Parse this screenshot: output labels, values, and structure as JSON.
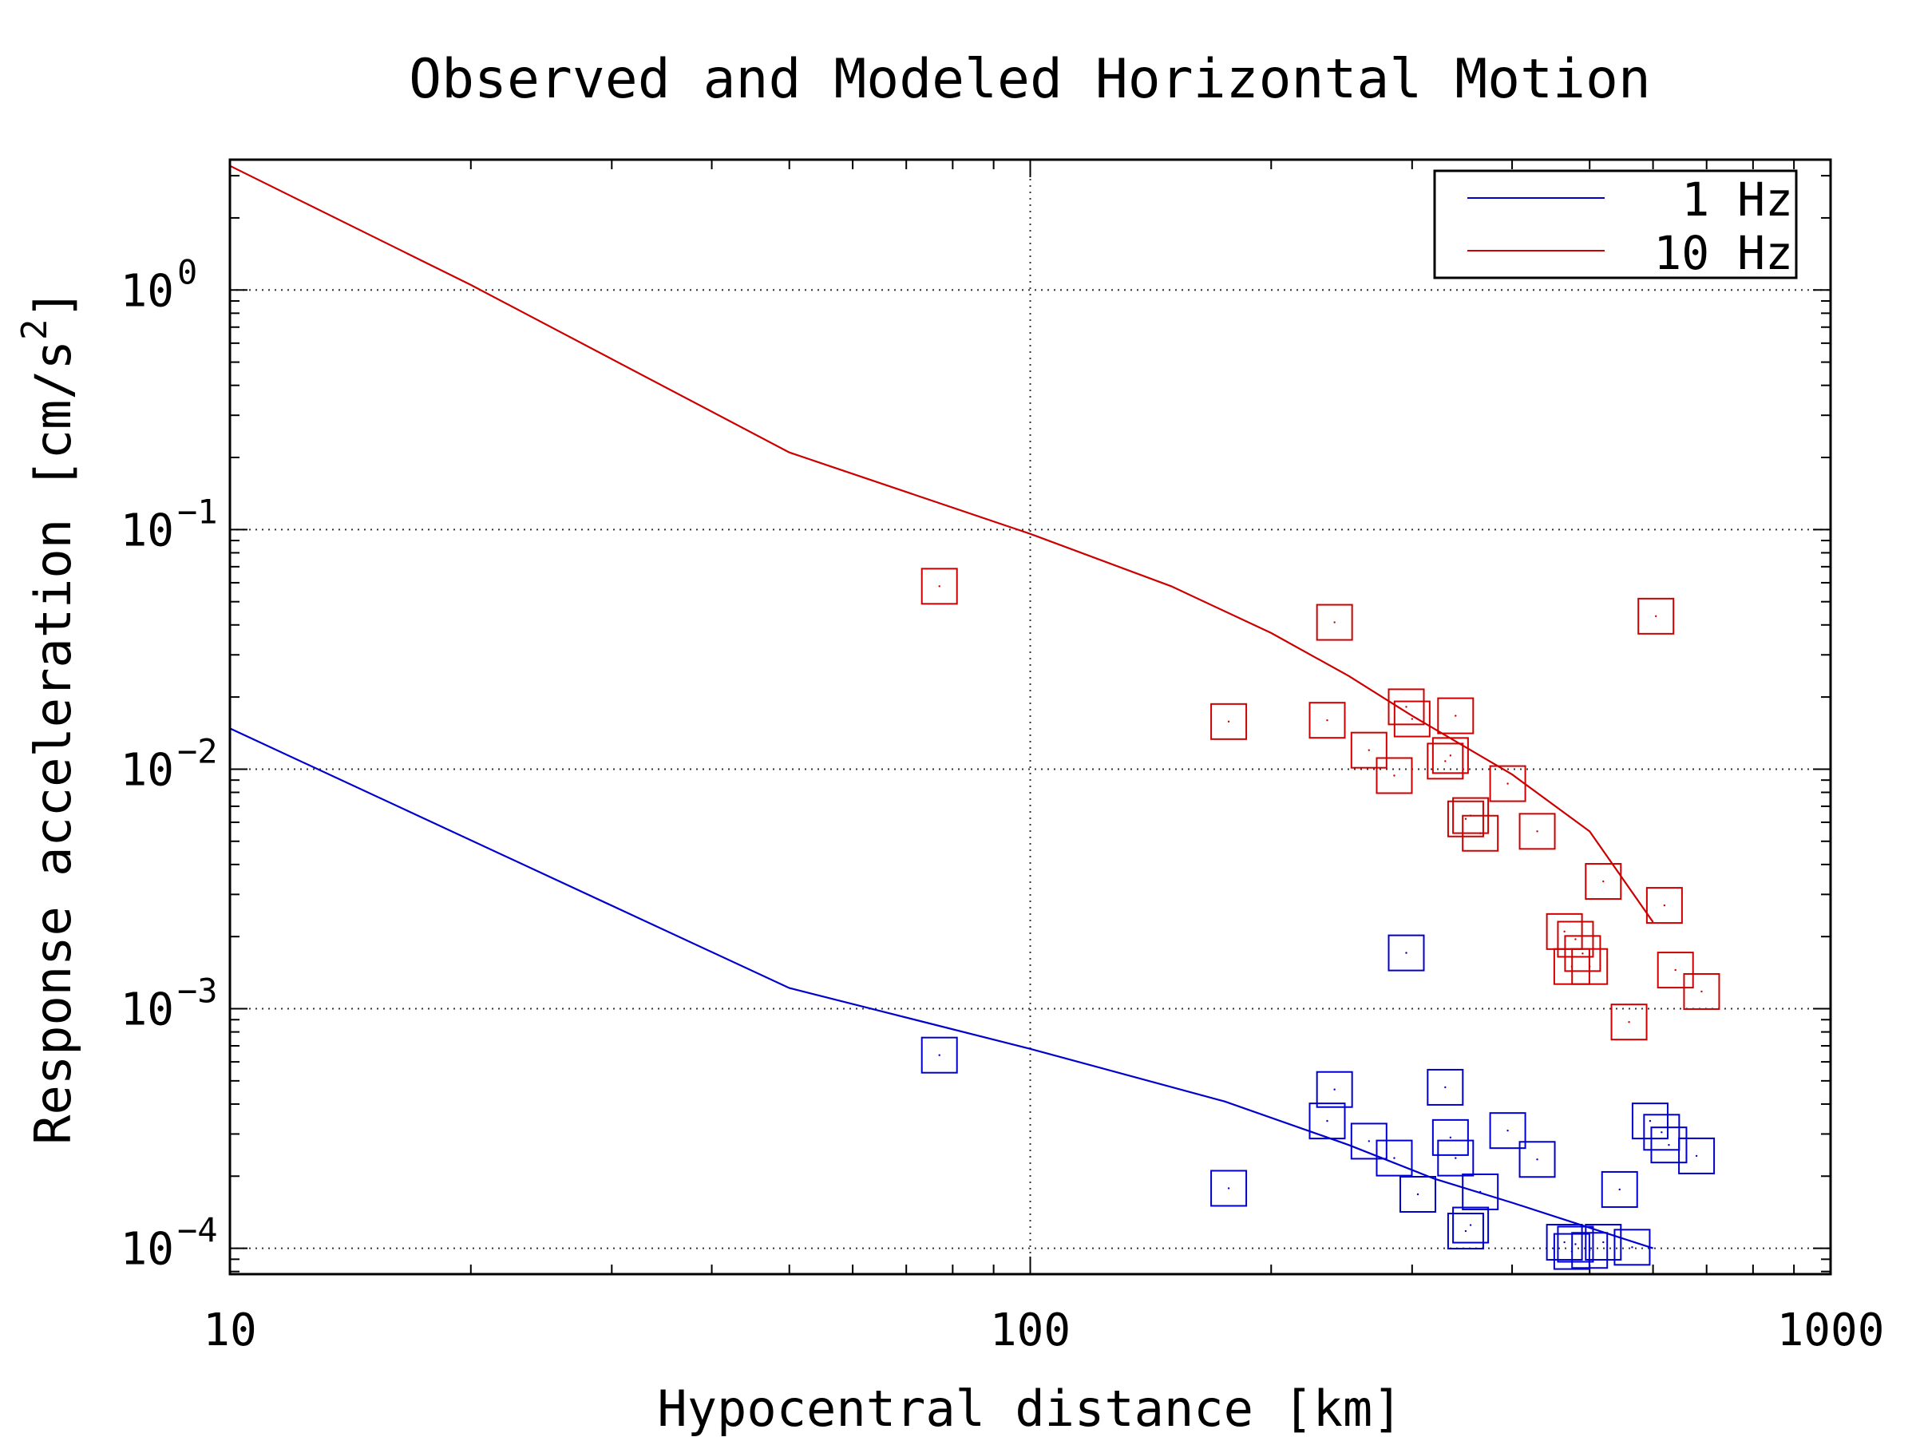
{
  "chart_data": {
    "type": "scatter",
    "title": "Observed and Modeled Horizontal Motion",
    "xlabel": "Hypocentral distance [km]",
    "ylabel": {
      "text": "Response acceleration [cm/s",
      "superscript": "2",
      "suffix": "]"
    },
    "x_scale": "log",
    "y_scale": "log",
    "xlim": [
      10,
      1000
    ],
    "ylim": [
      7.8e-05,
      3.5
    ],
    "grid": true,
    "legend_position": "top-right",
    "x_ticks": [
      {
        "value": 10,
        "label": "10"
      },
      {
        "value": 100,
        "label": "100"
      },
      {
        "value": 1000,
        "label": "1000"
      }
    ],
    "y_ticks": [
      {
        "value": 1,
        "base": "10",
        "exp": "0"
      },
      {
        "value": 0.1,
        "base": "10",
        "exp": "−1"
      },
      {
        "value": 0.01,
        "base": "10",
        "exp": "−2"
      },
      {
        "value": 0.001,
        "base": "10",
        "exp": "−3"
      },
      {
        "value": 0.0001,
        "base": "10",
        "exp": "−4"
      }
    ],
    "series": [
      {
        "name": "1 Hz",
        "color": "#0000cc",
        "model_line": {
          "x": [
            10,
            50,
            100,
            175,
            250,
            320,
            400,
            600
          ],
          "y": [
            0.0148,
            0.00122,
            0.00068,
            0.00041,
            0.00027,
            0.000195,
            0.000155,
            0.0001
          ]
        },
        "observed": {
          "x": [
            77,
            177,
            240,
            235,
            265,
            285,
            295,
            305,
            330,
            335,
            340,
            350,
            355,
            365,
            395,
            430,
            465,
            475,
            480,
            500,
            520,
            545,
            565,
            595,
            615,
            628,
            680
          ],
          "y": [
            0.00064,
            0.000178,
            0.00046,
            0.00034,
            0.00028,
            0.000238,
            0.00171,
            0.000168,
            0.00047,
            0.00029,
            0.000238,
            0.000118,
            0.000125,
            0.000172,
            0.00031,
            0.000235,
            0.000106,
            9.7e-05,
            0.000104,
            9.8e-05,
            0.000106,
            0.000176,
            0.000101,
            0.00034,
            0.000305,
            0.00027,
            0.000243
          ]
        }
      },
      {
        "name": "10 Hz",
        "color": "#cc0000",
        "model_line": {
          "x": [
            10,
            20,
            50,
            100,
            150,
            200,
            250,
            300,
            400,
            500,
            600
          ],
          "y": [
            3.3,
            1.05,
            0.21,
            0.096,
            0.058,
            0.037,
            0.0245,
            0.0167,
            0.0095,
            0.0055,
            0.0023
          ]
        },
        "observed": {
          "x": [
            77,
            177,
            235,
            240,
            265,
            285,
            295,
            300,
            330,
            335,
            340,
            350,
            355,
            365,
            395,
            430,
            465,
            475,
            480,
            490,
            500,
            520,
            560,
            605,
            620,
            640,
            690
          ],
          "y": [
            0.058,
            0.0158,
            0.016,
            0.041,
            0.012,
            0.0094,
            0.0182,
            0.0162,
            0.0108,
            0.0114,
            0.0167,
            0.0062,
            0.0064,
            0.0054,
            0.0087,
            0.0055,
            0.0021,
            0.0015,
            0.00195,
            0.0017,
            0.0015,
            0.0034,
            0.00088,
            0.0435,
            0.0027,
            0.00145,
            0.00118
          ]
        }
      }
    ]
  }
}
